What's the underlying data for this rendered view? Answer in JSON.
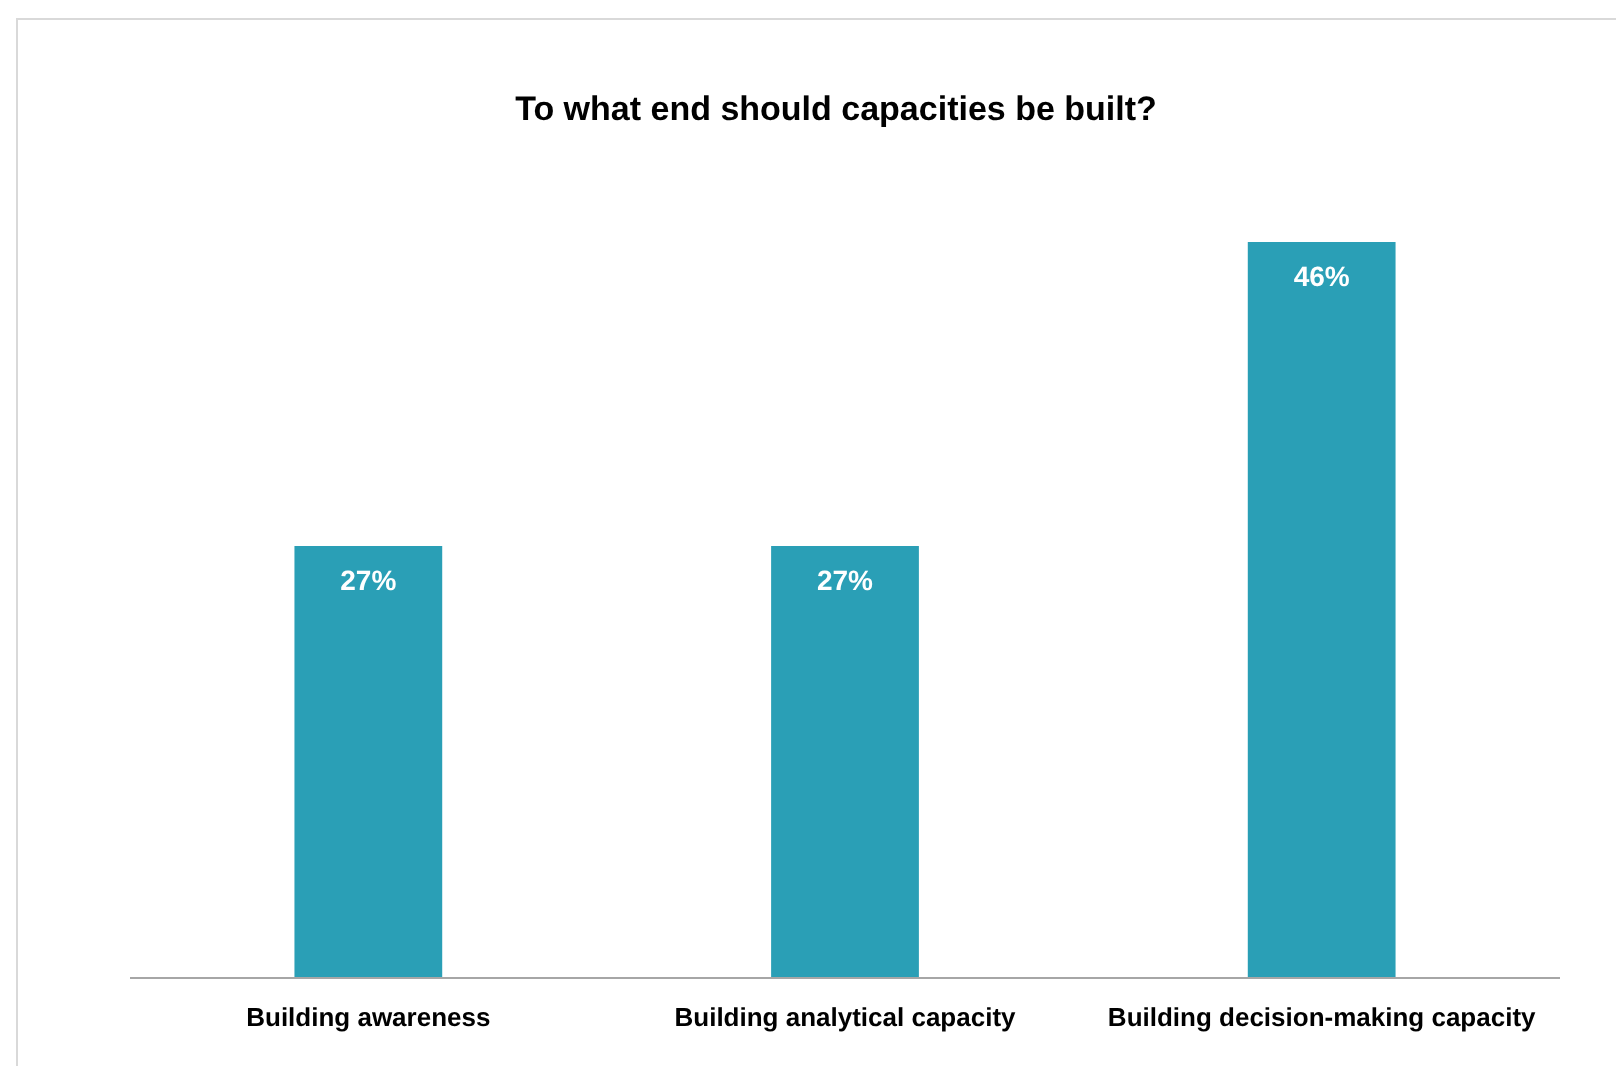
{
  "chart_data": {
    "type": "bar",
    "title": "To what end should capacities be built?",
    "categories": [
      "Building awareness",
      "Building analytical capacity",
      "Building decision-making capacity"
    ],
    "values": [
      27,
      27,
      46
    ],
    "color": "#2a9fb6",
    "value_labels": [
      "27%",
      "27%",
      "46%"
    ]
  }
}
